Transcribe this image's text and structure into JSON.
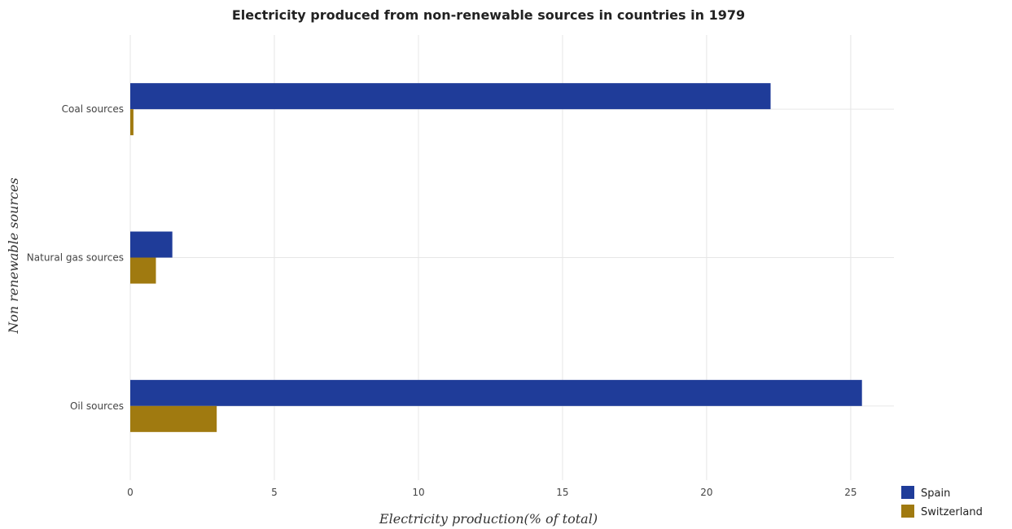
{
  "chart_data": {
    "type": "bar",
    "orientation": "horizontal",
    "title": "Electricity produced from non-renewable sources in countries in 1979",
    "xlabel": "Electricity production(% of total)",
    "ylabel": "Non renewable sources",
    "categories": [
      "Coal sources",
      "Natural gas sources",
      "Oil sources"
    ],
    "xlim": [
      0,
      26.5
    ],
    "xticks": [
      0,
      5,
      10,
      15,
      20,
      25
    ],
    "grid": true,
    "legend_position": "bottom-right",
    "series": [
      {
        "name": "Spain",
        "color": "#1f3c99",
        "values": [
          22.22,
          1.46,
          25.39
        ]
      },
      {
        "name": "Switzerland",
        "color": "#a07a10",
        "values": [
          0.11,
          0.89,
          3.0
        ]
      }
    ]
  }
}
